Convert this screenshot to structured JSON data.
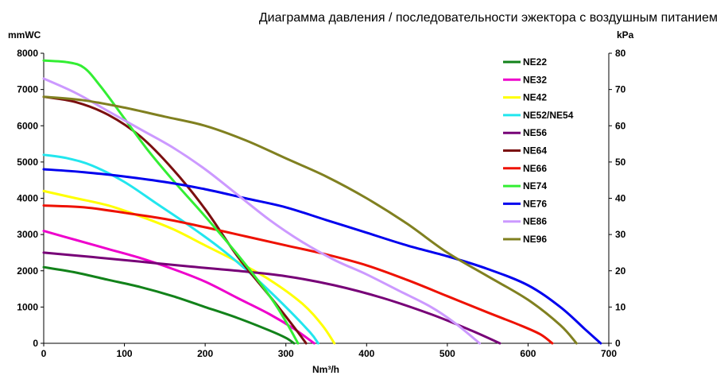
{
  "chart_data": {
    "type": "line",
    "title": "Диаграмма давления / последовательности эжектора с воздушным питанием",
    "xlabel": "Nm³/h",
    "ylabel_left": "mmWC",
    "ylabel_right": "kPa",
    "xlim": [
      0,
      700
    ],
    "ylim": [
      0,
      8000
    ],
    "ylim_right": [
      0,
      80
    ],
    "x_ticks": [
      0,
      100,
      200,
      300,
      400,
      500,
      600,
      700
    ],
    "y_ticks": [
      0,
      1000,
      2000,
      3000,
      4000,
      5000,
      6000,
      7000,
      8000
    ],
    "y_right_ticks": [
      0,
      10,
      20,
      30,
      40,
      50,
      60,
      70,
      80
    ],
    "grid": false,
    "legend_position": "top-right",
    "series": [
      {
        "name": "NE22",
        "color": "#12821a",
        "points": [
          [
            0,
            2100
          ],
          [
            40,
            1950
          ],
          [
            80,
            1750
          ],
          [
            120,
            1550
          ],
          [
            160,
            1300
          ],
          [
            200,
            1000
          ],
          [
            240,
            700
          ],
          [
            280,
            350
          ],
          [
            300,
            150
          ],
          [
            310,
            0
          ]
        ]
      },
      {
        "name": "NE32",
        "color": "#ee00cc",
        "points": [
          [
            0,
            3100
          ],
          [
            40,
            2850
          ],
          [
            80,
            2600
          ],
          [
            120,
            2350
          ],
          [
            160,
            2050
          ],
          [
            200,
            1700
          ],
          [
            240,
            1250
          ],
          [
            280,
            800
          ],
          [
            310,
            400
          ],
          [
            335,
            0
          ]
        ]
      },
      {
        "name": "NE42",
        "color": "#ffff00",
        "points": [
          [
            0,
            4200
          ],
          [
            40,
            4000
          ],
          [
            80,
            3800
          ],
          [
            120,
            3500
          ],
          [
            160,
            3150
          ],
          [
            200,
            2700
          ],
          [
            240,
            2250
          ],
          [
            280,
            1750
          ],
          [
            320,
            1100
          ],
          [
            345,
            500
          ],
          [
            360,
            0
          ]
        ]
      },
      {
        "name": "NE52/NE54",
        "color": "#22e6ee",
        "points": [
          [
            0,
            5200
          ],
          [
            30,
            5100
          ],
          [
            60,
            4900
          ],
          [
            100,
            4450
          ],
          [
            140,
            3850
          ],
          [
            180,
            3250
          ],
          [
            220,
            2600
          ],
          [
            260,
            1850
          ],
          [
            300,
            1000
          ],
          [
            330,
            300
          ],
          [
            340,
            0
          ]
        ]
      },
      {
        "name": "NE56",
        "color": "#770077",
        "points": [
          [
            0,
            2500
          ],
          [
            60,
            2380
          ],
          [
            120,
            2250
          ],
          [
            180,
            2120
          ],
          [
            240,
            2000
          ],
          [
            300,
            1850
          ],
          [
            360,
            1600
          ],
          [
            420,
            1250
          ],
          [
            480,
            800
          ],
          [
            530,
            350
          ],
          [
            565,
            0
          ]
        ]
      },
      {
        "name": "NE64",
        "color": "#7a0f0f",
        "points": [
          [
            0,
            6800
          ],
          [
            40,
            6650
          ],
          [
            80,
            6300
          ],
          [
            120,
            5700
          ],
          [
            160,
            4800
          ],
          [
            200,
            3700
          ],
          [
            240,
            2400
          ],
          [
            280,
            1300
          ],
          [
            310,
            450
          ],
          [
            325,
            0
          ]
        ]
      },
      {
        "name": "NE66",
        "color": "#ee1100",
        "points": [
          [
            0,
            3800
          ],
          [
            50,
            3750
          ],
          [
            100,
            3600
          ],
          [
            150,
            3430
          ],
          [
            200,
            3200
          ],
          [
            250,
            2950
          ],
          [
            300,
            2700
          ],
          [
            350,
            2450
          ],
          [
            400,
            2150
          ],
          [
            450,
            1750
          ],
          [
            500,
            1300
          ],
          [
            550,
            850
          ],
          [
            590,
            500
          ],
          [
            615,
            250
          ],
          [
            630,
            0
          ]
        ]
      },
      {
        "name": "NE74",
        "color": "#33ee33",
        "points": [
          [
            0,
            7800
          ],
          [
            30,
            7750
          ],
          [
            50,
            7600
          ],
          [
            70,
            7100
          ],
          [
            100,
            6200
          ],
          [
            130,
            5300
          ],
          [
            160,
            4500
          ],
          [
            200,
            3500
          ],
          [
            240,
            2450
          ],
          [
            280,
            1300
          ],
          [
            300,
            600
          ],
          [
            315,
            0
          ]
        ]
      },
      {
        "name": "NE76",
        "color": "#0000ee",
        "points": [
          [
            0,
            4800
          ],
          [
            50,
            4720
          ],
          [
            100,
            4600
          ],
          [
            150,
            4450
          ],
          [
            200,
            4250
          ],
          [
            250,
            4000
          ],
          [
            300,
            3750
          ],
          [
            350,
            3400
          ],
          [
            400,
            3050
          ],
          [
            450,
            2700
          ],
          [
            500,
            2400
          ],
          [
            550,
            2050
          ],
          [
            600,
            1600
          ],
          [
            640,
            1000
          ],
          [
            670,
            400
          ],
          [
            690,
            0
          ]
        ]
      },
      {
        "name": "NE86",
        "color": "#cc99ff",
        "points": [
          [
            0,
            7300
          ],
          [
            40,
            6900
          ],
          [
            80,
            6400
          ],
          [
            120,
            5900
          ],
          [
            160,
            5400
          ],
          [
            200,
            4800
          ],
          [
            240,
            4100
          ],
          [
            280,
            3400
          ],
          [
            320,
            2800
          ],
          [
            360,
            2300
          ],
          [
            400,
            1900
          ],
          [
            440,
            1450
          ],
          [
            480,
            1000
          ],
          [
            510,
            550
          ],
          [
            540,
            0
          ]
        ]
      },
      {
        "name": "NE96",
        "color": "#808020",
        "points": [
          [
            0,
            6800
          ],
          [
            50,
            6700
          ],
          [
            100,
            6500
          ],
          [
            150,
            6250
          ],
          [
            200,
            6000
          ],
          [
            250,
            5600
          ],
          [
            300,
            5100
          ],
          [
            350,
            4600
          ],
          [
            400,
            4000
          ],
          [
            450,
            3300
          ],
          [
            500,
            2500
          ],
          [
            550,
            1850
          ],
          [
            600,
            1200
          ],
          [
            640,
            500
          ],
          [
            660,
            0
          ]
        ]
      }
    ]
  }
}
